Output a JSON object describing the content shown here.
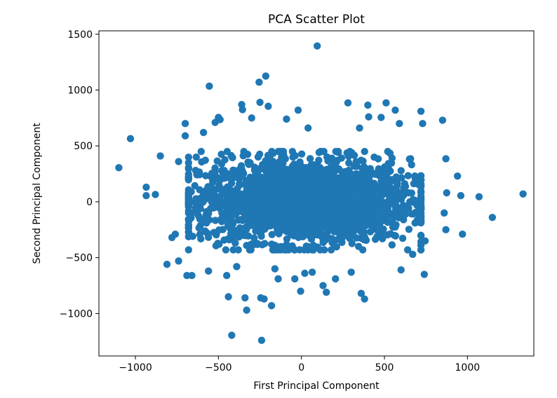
{
  "chart_data": {
    "type": "scatter",
    "title": "PCA Scatter Plot",
    "xlabel": "First Principal Component",
    "ylabel": "Second Principal Component",
    "xlim": [
      -1220,
      1400
    ],
    "ylim": [
      -1380,
      1530
    ],
    "xticks": [
      -1000,
      -500,
      0,
      500,
      1000
    ],
    "xtick_labels": [
      "−1000",
      "−500",
      "0",
      "500",
      "1000"
    ],
    "yticks": [
      -1000,
      -500,
      0,
      500,
      1000,
      1500
    ],
    "ytick_labels": [
      "−1000",
      "−500",
      "0",
      "500",
      "1000",
      "1500"
    ],
    "marker_color": "#1f77b4",
    "grid": false,
    "legend": false,
    "points": [
      [
        -1100,
        305
      ],
      [
        -1030,
        565
      ],
      [
        -935,
        130
      ],
      [
        -935,
        55
      ],
      [
        -880,
        65
      ],
      [
        -850,
        410
      ],
      [
        -810,
        -560
      ],
      [
        -760,
        -290
      ],
      [
        -780,
        -320
      ],
      [
        -740,
        -530
      ],
      [
        -740,
        360
      ],
      [
        -700,
        700
      ],
      [
        -700,
        590
      ],
      [
        -690,
        -660
      ],
      [
        -660,
        -660
      ],
      [
        -590,
        620
      ],
      [
        -560,
        -620
      ],
      [
        -555,
        1035
      ],
      [
        -520,
        710
      ],
      [
        -500,
        755
      ],
      [
        -490,
        735
      ],
      [
        -450,
        -660
      ],
      [
        -440,
        -850
      ],
      [
        -420,
        -1195
      ],
      [
        -390,
        -580
      ],
      [
        -360,
        870
      ],
      [
        -355,
        825
      ],
      [
        -340,
        -860
      ],
      [
        -330,
        -970
      ],
      [
        -300,
        750
      ],
      [
        -255,
        1070
      ],
      [
        -250,
        890
      ],
      [
        -245,
        -860
      ],
      [
        -240,
        -1240
      ],
      [
        -225,
        -870
      ],
      [
        -215,
        1125
      ],
      [
        -200,
        855
      ],
      [
        -180,
        -930
      ],
      [
        -160,
        -600
      ],
      [
        -140,
        -690
      ],
      [
        -90,
        740
      ],
      [
        -40,
        -690
      ],
      [
        -20,
        820
      ],
      [
        -5,
        -800
      ],
      [
        20,
        -640
      ],
      [
        40,
        660
      ],
      [
        65,
        -630
      ],
      [
        95,
        1395
      ],
      [
        130,
        -750
      ],
      [
        150,
        -810
      ],
      [
        205,
        -690
      ],
      [
        280,
        885
      ],
      [
        300,
        -630
      ],
      [
        350,
        660
      ],
      [
        360,
        -820
      ],
      [
        380,
        -870
      ],
      [
        400,
        865
      ],
      [
        405,
        760
      ],
      [
        480,
        755
      ],
      [
        510,
        885
      ],
      [
        565,
        820
      ],
      [
        590,
        700
      ],
      [
        600,
        -610
      ],
      [
        640,
        -430
      ],
      [
        670,
        -470
      ],
      [
        720,
        810
      ],
      [
        730,
        700
      ],
      [
        740,
        -650
      ],
      [
        745,
        -350
      ],
      [
        850,
        730
      ],
      [
        870,
        385
      ],
      [
        870,
        -250
      ],
      [
        860,
        -100
      ],
      [
        875,
        80
      ],
      [
        940,
        230
      ],
      [
        970,
        -290
      ],
      [
        960,
        55
      ],
      [
        1070,
        45
      ],
      [
        1150,
        -140
      ],
      [
        1335,
        70
      ]
    ],
    "dense_cloud": {
      "x_range": [
        -680,
        720
      ],
      "y_range": [
        -430,
        450
      ],
      "count": 2400
    }
  }
}
